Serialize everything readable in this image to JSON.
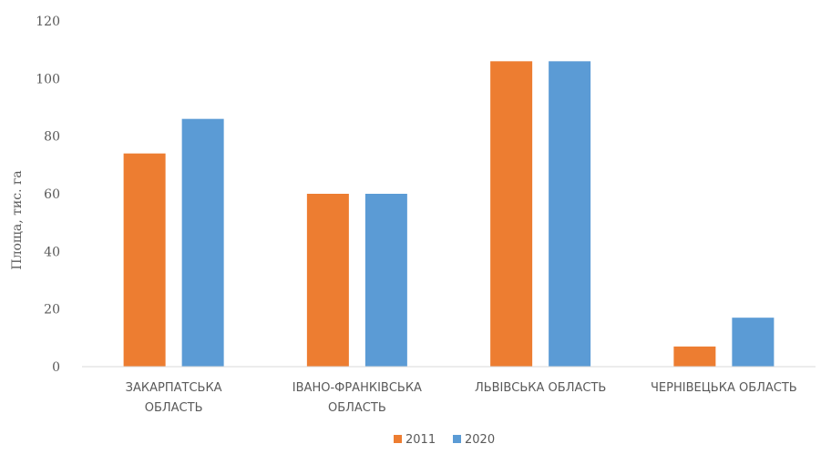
{
  "header_fragment": "",
  "colors": {
    "series_2011": "#ed7d31",
    "series_2020": "#5b9bd5",
    "axis": "#d9d9d9",
    "text": "#595959"
  },
  "chart_data": {
    "type": "bar",
    "title": "",
    "xlabel": "",
    "ylabel": "Площа, тис. га",
    "ylim": [
      0,
      120
    ],
    "yticks": [
      0,
      20,
      40,
      60,
      80,
      100,
      120
    ],
    "grid": false,
    "legend_position": "bottom",
    "categories": [
      [
        "ЗАКАРПАТСЬКА",
        "ОБЛАСТЬ"
      ],
      [
        "ІВАНО-ФРАНКІВСЬКА",
        "ОБЛАСТЬ"
      ],
      [
        "ЛЬВІВСЬКА ОБЛАСТЬ"
      ],
      [
        "ЧЕРНІВЕЦЬКА ОБЛАСТЬ"
      ]
    ],
    "series": [
      {
        "name": "2011",
        "color": "#ed7d31",
        "values": [
          74,
          60,
          106,
          7
        ]
      },
      {
        "name": "2020",
        "color": "#5b9bd5",
        "values": [
          86,
          60,
          106,
          17
        ]
      }
    ]
  }
}
